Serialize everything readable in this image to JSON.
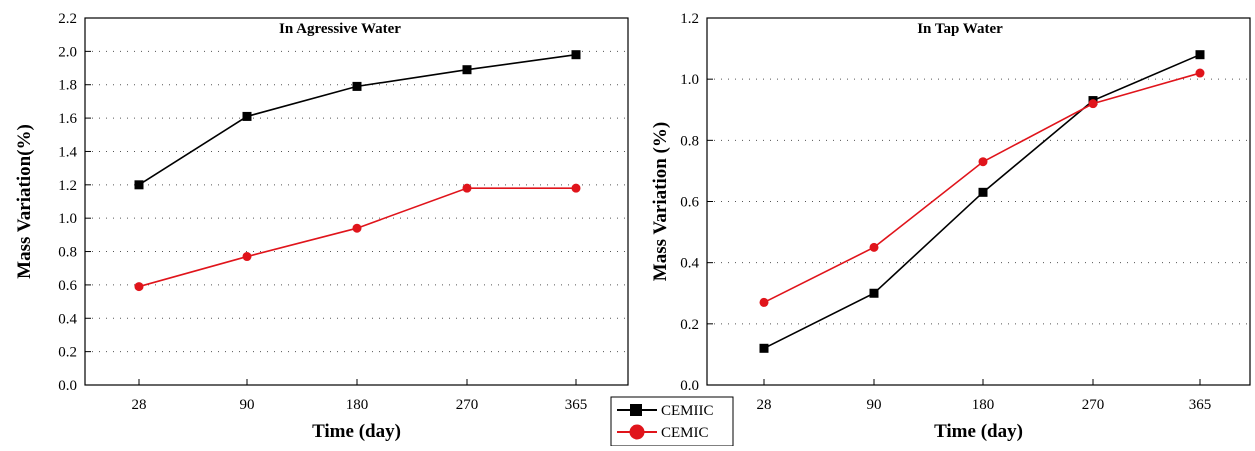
{
  "chart_data": [
    {
      "type": "line",
      "title": "In Agressive Water",
      "xlabel": "Time (day)",
      "ylabel": "Mass Variation(%)",
      "categories": [
        "28",
        "90",
        "180",
        "270",
        "365"
      ],
      "yticks": [
        "0.0",
        "0.2",
        "0.4",
        "0.6",
        "0.8",
        "1.0",
        "1.2",
        "1.4",
        "1.6",
        "1.8",
        "2.0",
        "2.2"
      ],
      "ylim": [
        0,
        2.2
      ],
      "grid": "dotted horizontal",
      "series": [
        {
          "name": "CEMIIC",
          "color": "#000000",
          "marker": "square",
          "values": [
            1.2,
            1.61,
            1.79,
            1.89,
            1.98
          ]
        },
        {
          "name": "CEMIC",
          "color": "#e0141b",
          "marker": "circle",
          "values": [
            0.59,
            0.77,
            0.94,
            1.18,
            1.18
          ]
        }
      ]
    },
    {
      "type": "line",
      "title": "In Tap Water",
      "xlabel": "Time (day)",
      "ylabel": "Mass Variation (%)",
      "categories": [
        "28",
        "90",
        "180",
        "270",
        "365"
      ],
      "yticks": [
        "0.0",
        "0.2",
        "0.4",
        "0.6",
        "0.8",
        "1.0",
        "1.2"
      ],
      "ylim": [
        0,
        1.2
      ],
      "grid": "dotted horizontal",
      "series": [
        {
          "name": "CEMIIC",
          "color": "#000000",
          "marker": "square",
          "values": [
            0.12,
            0.3,
            0.63,
            0.93,
            1.08
          ]
        },
        {
          "name": "CEMIC",
          "color": "#e0141b",
          "marker": "circle",
          "values": [
            0.27,
            0.45,
            0.73,
            0.92,
            1.02
          ]
        }
      ]
    }
  ],
  "legend": {
    "placement": "bottom-center",
    "items": [
      {
        "label": "CEMIIC",
        "color": "#000000",
        "marker": "square"
      },
      {
        "label": "CEMIC",
        "color": "#e0141b",
        "marker": "circle"
      }
    ]
  }
}
